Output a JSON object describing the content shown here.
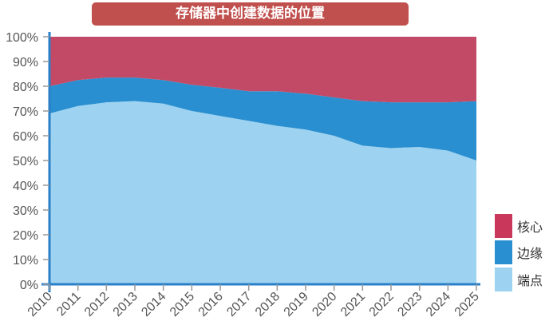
{
  "chart_data": {
    "type": "area",
    "stacked": true,
    "title": "存储器中创建数据的位置",
    "xlabel": "",
    "ylabel": "",
    "ylim": [
      0,
      100
    ],
    "yticks": [
      "0%",
      "10%",
      "20%",
      "30%",
      "40%",
      "50%",
      "60%",
      "70%",
      "80%",
      "90%",
      "100%"
    ],
    "categories": [
      "2010",
      "2011",
      "2012",
      "2013",
      "2014",
      "2015",
      "2016",
      "2017",
      "2018",
      "2019",
      "2020",
      "2021",
      "2022",
      "2023",
      "2024",
      "2025"
    ],
    "series": [
      {
        "name": "端点",
        "color": "#9dd3f0",
        "values": [
          69,
          72,
          73.5,
          74,
          73,
          70,
          68,
          66,
          64,
          62.5,
          60,
          56,
          55,
          55.5,
          54,
          50
        ]
      },
      {
        "name": "边缘",
        "color": "#2a8fd0",
        "values": [
          11,
          10.5,
          10,
          9.5,
          9.5,
          10.6,
          11.4,
          12,
          14,
          14.5,
          15.5,
          18,
          18.5,
          18,
          19.5,
          24
        ]
      },
      {
        "name": "核心",
        "color": "#c24a66",
        "values": [
          20,
          17.5,
          16.5,
          16.5,
          17.5,
          19.4,
          20.6,
          22,
          22,
          23,
          24.5,
          26,
          26.5,
          26.5,
          26.5,
          26
        ]
      }
    ],
    "legend_position": "right"
  }
}
